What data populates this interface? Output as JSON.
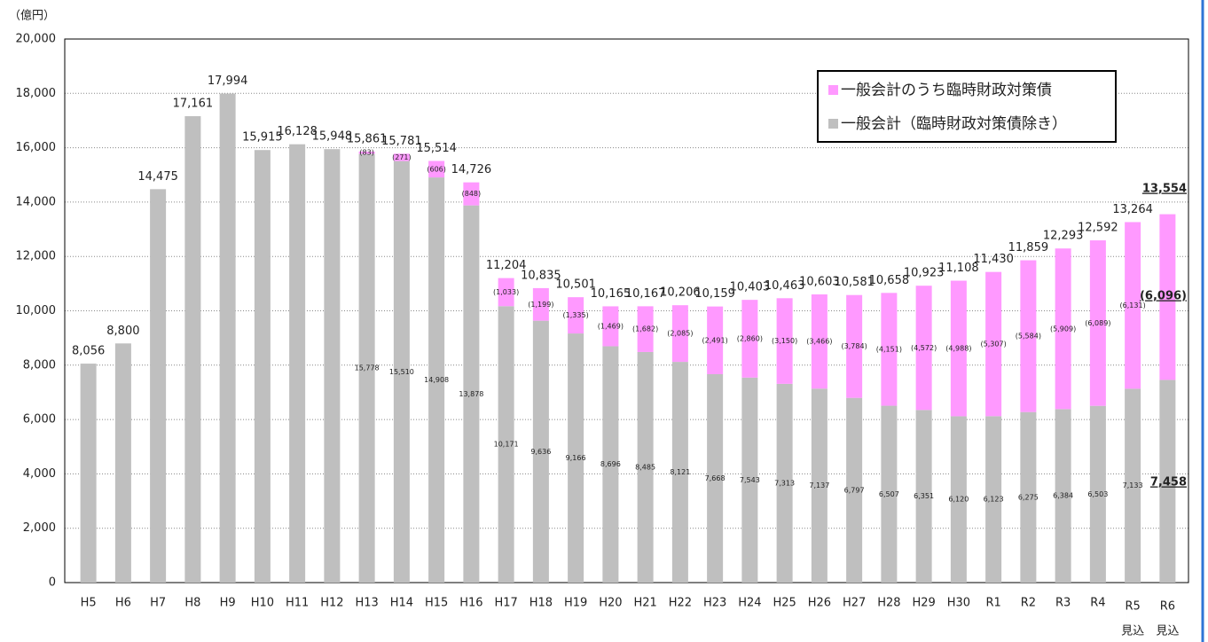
{
  "chart_data": {
    "type": "stacked_bar",
    "y_axis_label": "（億円）",
    "categories": [
      "H5",
      "H6",
      "H7",
      "H8",
      "H9",
      "H10",
      "H11",
      "H12",
      "H13",
      "H14",
      "H15",
      "H16",
      "H17",
      "H18",
      "H19",
      "H20",
      "H21",
      "H22",
      "H23",
      "H24",
      "H25",
      "H26",
      "H27",
      "H28",
      "H29",
      "H30",
      "R1",
      "R2",
      "R3",
      "R4",
      "R5",
      "R6"
    ],
    "category_note": "見込",
    "category_note_indices": [
      30,
      31
    ],
    "ylim": [
      0,
      20000
    ],
    "yticks": [
      0,
      {
        "value": 2000,
        "label": "2,000"
      },
      {
        "value": 4000,
        "label": "4,000"
      },
      {
        "value": 6000,
        "label": "6,000"
      },
      {
        "value": 8000,
        "label": "8,000"
      },
      {
        "value": 10000,
        "label": "10,000"
      },
      {
        "value": 12000,
        "label": "12,000"
      },
      {
        "value": 14000,
        "label": "14,000"
      },
      {
        "value": 16000,
        "label": "16,000"
      },
      {
        "value": 18000,
        "label": "18,000"
      },
      {
        "value": 20000,
        "label": "20,000"
      }
    ],
    "grid": true,
    "legend": "top-right",
    "series": [
      {
        "name": "一般会計（臨時財政対策債除き）",
        "color": "#bfbfbf",
        "values": [
          8056,
          8800,
          14475,
          17161,
          17994,
          15915,
          16128,
          15948,
          15778,
          15510,
          14908,
          13878,
          10171,
          9636,
          9166,
          8696,
          8485,
          8121,
          7668,
          7543,
          7313,
          7137,
          6797,
          6507,
          6351,
          6120,
          6123,
          6275,
          6384,
          6503,
          7133,
          7458
        ],
        "value_labels": [
          null,
          null,
          null,
          null,
          null,
          null,
          null,
          null,
          "15,778",
          "15,510",
          "14,908",
          "13,878",
          "10,171",
          "9,636",
          "9,166",
          "8,696",
          "8,485",
          "8,121",
          "7,668",
          "7,543",
          "7,313",
          "7,137",
          "6,797",
          "6,507",
          "6,351",
          "6,120",
          "6,123",
          "6,275",
          "6,384",
          "6,503",
          "7,133",
          "7,458"
        ]
      },
      {
        "name": "一般会計のうち臨時財政対策債",
        "color": "#ff99ff",
        "values": [
          null,
          null,
          null,
          null,
          null,
          null,
          null,
          null,
          83,
          271,
          606,
          848,
          1033,
          1199,
          1335,
          1469,
          1682,
          2085,
          2491,
          2860,
          3150,
          3466,
          3784,
          4151,
          4572,
          4988,
          5307,
          5584,
          5909,
          6089,
          6131,
          6096
        ],
        "value_labels": [
          null,
          null,
          null,
          null,
          null,
          null,
          null,
          null,
          "(83)",
          "(271)",
          "(606)",
          "(848)",
          "(1,033)",
          "(1,199)",
          "(1,335)",
          "(1,469)",
          "(1,682)",
          "(2,085)",
          "(2,491)",
          "(2,860)",
          "(3,150)",
          "(3,466)",
          "(3,784)",
          "(4,151)",
          "(4,572)",
          "(4,988)",
          "(5,307)",
          "(5,584)",
          "(5,909)",
          "(6,089)",
          "(6,131)",
          "(6,096)"
        ]
      }
    ],
    "totals": [
      8056,
      8800,
      14475,
      17161,
      17994,
      15915,
      16128,
      15948,
      15861,
      15781,
      15514,
      14726,
      11204,
      10835,
      10501,
      10165,
      10167,
      10206,
      10159,
      10403,
      10463,
      10603,
      10581,
      10658,
      10923,
      11108,
      11430,
      11859,
      12293,
      12592,
      13264,
      13554
    ],
    "total_labels": [
      "8,056",
      "8,800",
      "14,475",
      "17,161",
      "17,994",
      "15,915",
      "16,128",
      "15,948",
      "15,861",
      "15,781",
      "15,514",
      "14,726",
      "11,204",
      "10,835",
      "10,501",
      "10,165",
      "10,167",
      "10,206",
      "10,159",
      "10,403",
      "10,463",
      "10,603",
      "10,581",
      "10,658",
      "10,923",
      "11,108",
      "11,430",
      "11,859",
      "12,293",
      "12,592",
      "13,264",
      "13,554"
    ]
  }
}
